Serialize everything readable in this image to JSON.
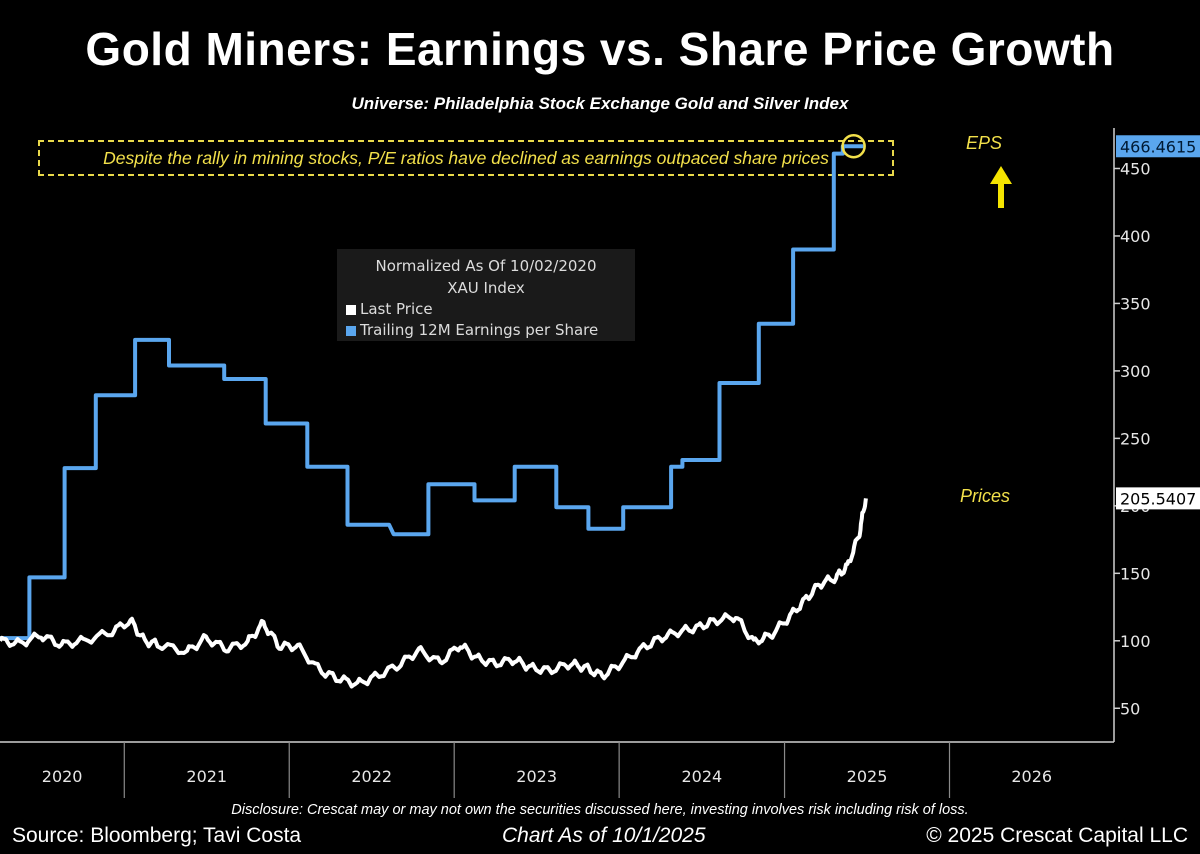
{
  "header": {
    "title": "Gold Miners: Earnings vs. Share Price Growth",
    "subtitle": "Universe: Philadelphia Stock Exchange Gold and Silver Index"
  },
  "annotation": {
    "text": "Despite the rally in mining stocks, P/E ratios have declined as earnings outpaced share prices",
    "eps_label": "EPS",
    "prices_label": "Prices"
  },
  "legend": {
    "line1": "Normalized As Of 10/02/2020",
    "line2": "XAU Index",
    "items": [
      {
        "label": "Last Price",
        "color": "#ffffff"
      },
      {
        "label": "Trailing 12M Earnings per Share",
        "color": "#5aa6ee"
      }
    ]
  },
  "footer": {
    "disclosure": "Disclosure: Crescat may or may not own the securities discussed here, investing involves risk including risk of loss.",
    "source": "Source: Bloomberg; Tavi Costa",
    "chart_as_of": "Chart As of 10/1/2025",
    "copyright": "© 2025 Crescat Capital LLC"
  },
  "chart_data": {
    "type": "line",
    "x_axis": {
      "type": "date",
      "range": [
        "2020-04-01",
        "2026-12-31"
      ],
      "labels": [
        "2020",
        "2021",
        "2022",
        "2023",
        "2024",
        "2025",
        "2026"
      ]
    },
    "y_axis": {
      "range": [
        25,
        480
      ],
      "ticks": [
        50,
        100,
        150,
        200,
        250,
        300,
        350,
        400,
        450
      ],
      "position": "right"
    },
    "grid": false,
    "legend_position": "top-center",
    "series": [
      {
        "name": "Trailing 12M Earnings per Share",
        "color": "#5aa6ee",
        "last_value": "466.4615",
        "step": true,
        "points": [
          [
            "2020-04-01",
            102
          ],
          [
            "2020-06-05",
            102
          ],
          [
            "2020-06-05",
            147
          ],
          [
            "2020-08-22",
            147
          ],
          [
            "2020-08-22",
            228
          ],
          [
            "2020-10-30",
            228
          ],
          [
            "2020-10-30",
            282
          ],
          [
            "2021-01-25",
            282
          ],
          [
            "2021-01-25",
            323
          ],
          [
            "2021-04-10",
            323
          ],
          [
            "2021-04-10",
            304
          ],
          [
            "2021-08-10",
            304
          ],
          [
            "2021-08-10",
            294
          ],
          [
            "2021-11-10",
            294
          ],
          [
            "2021-11-10",
            261
          ],
          [
            "2022-02-10",
            261
          ],
          [
            "2022-02-10",
            229
          ],
          [
            "2022-05-10",
            229
          ],
          [
            "2022-05-10",
            186
          ],
          [
            "2022-08-10",
            186
          ],
          [
            "2022-08-20",
            179
          ],
          [
            "2022-11-05",
            179
          ],
          [
            "2022-11-05",
            216
          ],
          [
            "2023-02-15",
            216
          ],
          [
            "2023-02-15",
            204
          ],
          [
            "2023-05-15",
            204
          ],
          [
            "2023-05-15",
            229
          ],
          [
            "2023-08-15",
            229
          ],
          [
            "2023-08-15",
            199
          ],
          [
            "2023-10-25",
            199
          ],
          [
            "2023-10-25",
            183
          ],
          [
            "2024-01-10",
            183
          ],
          [
            "2024-01-10",
            199
          ],
          [
            "2024-04-25",
            199
          ],
          [
            "2024-04-25",
            229
          ],
          [
            "2024-05-20",
            229
          ],
          [
            "2024-05-20",
            234
          ],
          [
            "2024-08-10",
            234
          ],
          [
            "2024-08-10",
            291
          ],
          [
            "2024-11-05",
            291
          ],
          [
            "2024-11-05",
            335
          ],
          [
            "2025-01-20",
            335
          ],
          [
            "2025-01-20",
            390
          ],
          [
            "2025-04-20",
            390
          ],
          [
            "2025-04-20",
            461
          ],
          [
            "2025-05-10",
            461
          ],
          [
            "2025-05-10",
            466.4615
          ],
          [
            "2025-06-25",
            466.4615
          ]
        ]
      },
      {
        "name": "Last Price",
        "color": "#ffffff",
        "last_value": "205.5407",
        "points": [
          [
            "2020-04-01",
            100
          ],
          [
            "2020-05-15",
            98
          ],
          [
            "2020-07-01",
            104
          ],
          [
            "2020-08-15",
            97
          ],
          [
            "2020-10-02",
            100
          ],
          [
            "2020-12-01",
            106
          ],
          [
            "2021-01-15",
            115
          ],
          [
            "2021-02-15",
            100
          ],
          [
            "2021-03-20",
            97
          ],
          [
            "2021-05-20",
            92
          ],
          [
            "2021-07-01",
            102
          ],
          [
            "2021-08-15",
            94
          ],
          [
            "2021-10-01",
            99
          ],
          [
            "2021-11-05",
            113
          ],
          [
            "2021-12-10",
            96
          ],
          [
            "2022-01-20",
            96
          ],
          [
            "2022-03-10",
            78
          ],
          [
            "2022-04-20",
            72
          ],
          [
            "2022-06-01",
            68
          ],
          [
            "2022-07-15",
            74
          ],
          [
            "2022-09-01",
            82
          ],
          [
            "2022-10-15",
            93
          ],
          [
            "2022-12-01",
            84
          ],
          [
            "2023-01-15",
            97
          ],
          [
            "2023-02-20",
            87
          ],
          [
            "2023-04-01",
            83
          ],
          [
            "2023-05-15",
            86
          ],
          [
            "2023-06-20",
            80
          ],
          [
            "2023-08-01",
            78
          ],
          [
            "2023-09-15",
            83
          ],
          [
            "2023-10-20",
            80
          ],
          [
            "2023-11-25",
            74
          ],
          [
            "2024-01-05",
            83
          ],
          [
            "2024-02-20",
            94
          ],
          [
            "2024-04-01",
            102
          ],
          [
            "2024-05-15",
            107
          ],
          [
            "2024-06-25",
            110
          ],
          [
            "2024-08-01",
            115
          ],
          [
            "2024-09-15",
            118
          ],
          [
            "2024-10-25",
            99
          ],
          [
            "2024-12-01",
            104
          ],
          [
            "2025-01-10",
            117
          ],
          [
            "2025-02-15",
            130
          ],
          [
            "2025-03-20",
            142
          ],
          [
            "2025-04-25",
            147
          ],
          [
            "2025-05-20",
            155
          ],
          [
            "2025-06-15",
            178
          ],
          [
            "2025-06-30",
            205.5407
          ]
        ]
      }
    ]
  }
}
